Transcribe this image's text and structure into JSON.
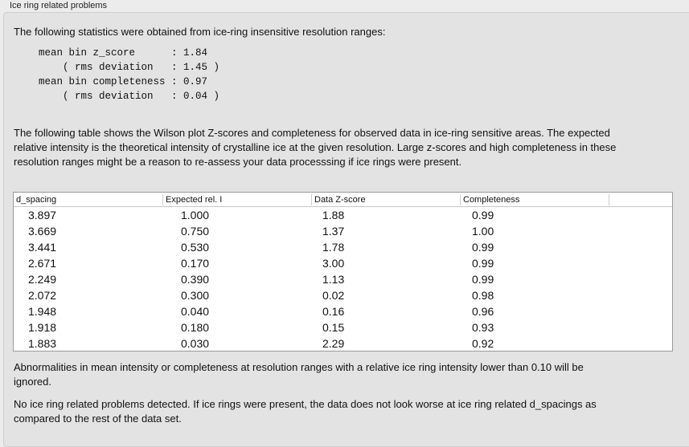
{
  "group_title": "Ice ring related problems",
  "intro": "The following statistics were obtained from ice-ring insensitive resolution ranges:",
  "stats": [
    {
      "label": "mean bin z_score      ",
      "value": "1.84"
    },
    {
      "label": "    ( rms deviation   ",
      "value": "1.45 )"
    },
    {
      "label": "mean bin completeness ",
      "value": "0.97"
    },
    {
      "label": "    ( rms deviation   ",
      "value": "0.04 )"
    }
  ],
  "table_description": "The following table shows the Wilson plot Z-scores and completeness for observed data in ice-ring sensitive areas. The expected relative intensity is the theoretical intensity of crystalline ice at the given resolution. Large z-scores and high completeness in these resolution ranges might be a reason to re-assess your data processsing if ice rings were present.",
  "table": {
    "columns": [
      "d_spacing",
      "Expected rel. I",
      "Data Z-score",
      "Completeness"
    ],
    "rows": [
      [
        "3.897",
        "1.000",
        "1.88",
        "0.99"
      ],
      [
        "3.669",
        "0.750",
        "1.37",
        "1.00"
      ],
      [
        "3.441",
        "0.530",
        "1.78",
        "0.99"
      ],
      [
        "2.671",
        "0.170",
        "3.00",
        "0.99"
      ],
      [
        "2.249",
        "0.390",
        "1.13",
        "0.99"
      ],
      [
        "2.072",
        "0.300",
        "0.02",
        "0.98"
      ],
      [
        "1.948",
        "0.040",
        "0.16",
        "0.96"
      ],
      [
        "1.918",
        "0.180",
        "0.15",
        "0.93"
      ],
      [
        "1.883",
        "0.030",
        "2.29",
        "0.92"
      ]
    ]
  },
  "note1": "Abnormalities in mean intensity or completeness at resolution ranges with a relative ice ring intensity lower than 0.10 will be ignored.",
  "note2": "No ice ring related problems detected. If ice rings were present, the data does not look worse at ice ring related d_spacings as compared to the rest of the data set."
}
